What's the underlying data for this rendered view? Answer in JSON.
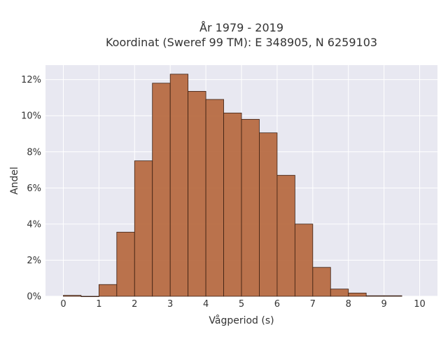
{
  "chart_data": {
    "type": "bar",
    "title": "År 1979 - 2019",
    "subtitle": "Koordinat (Sweref 99 TM): E 348905, N 6259103",
    "xlabel": "Vågperiod (s)",
    "ylabel": "Andel",
    "bin_width": 0.5,
    "bins": [
      {
        "start": 0.0,
        "value": 0.05
      },
      {
        "start": 0.5,
        "value": 0.0
      },
      {
        "start": 1.0,
        "value": 0.65
      },
      {
        "start": 1.5,
        "value": 3.55
      },
      {
        "start": 2.0,
        "value": 7.5
      },
      {
        "start": 2.5,
        "value": 11.8
      },
      {
        "start": 3.0,
        "value": 12.3
      },
      {
        "start": 3.5,
        "value": 11.35
      },
      {
        "start": 4.0,
        "value": 10.9
      },
      {
        "start": 4.5,
        "value": 10.15
      },
      {
        "start": 5.0,
        "value": 9.8
      },
      {
        "start": 5.5,
        "value": 9.05
      },
      {
        "start": 6.0,
        "value": 6.7
      },
      {
        "start": 6.5,
        "value": 4.0
      },
      {
        "start": 7.0,
        "value": 1.6
      },
      {
        "start": 7.5,
        "value": 0.4
      },
      {
        "start": 8.0,
        "value": 0.18
      },
      {
        "start": 8.5,
        "value": 0.03
      },
      {
        "start": 9.0,
        "value": 0.03
      }
    ],
    "xlim": [
      -0.5,
      10.5
    ],
    "ylim": [
      0,
      12.8
    ],
    "xticks": [
      0,
      1,
      2,
      3,
      4,
      5,
      6,
      7,
      8,
      9,
      10
    ],
    "yticks": [
      0,
      2,
      4,
      6,
      8,
      10,
      12
    ],
    "ytick_labels": [
      "0%",
      "2%",
      "4%",
      "6%",
      "8%",
      "10%",
      "12%"
    ],
    "grid": true,
    "colors": {
      "bar_fill": "#b5653a",
      "bar_edge": "#3a1f12",
      "plot_bg": "#e8e8f1",
      "grid": "#ffffff"
    }
  }
}
